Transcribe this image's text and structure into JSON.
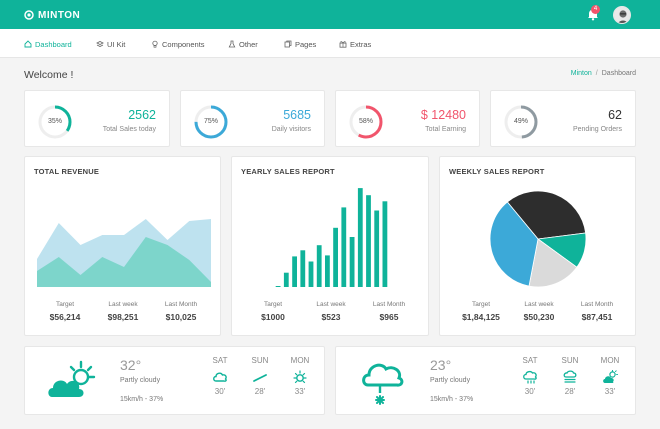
{
  "topbar": {
    "brand": "MINTON",
    "notification_count": "4",
    "color": "#0fb39a"
  },
  "nav": [
    {
      "label": "Dashboard",
      "icon": "home-icon",
      "active": true
    },
    {
      "label": "UI Kit",
      "icon": "layers-icon"
    },
    {
      "label": "Components",
      "icon": "bulb-icon"
    },
    {
      "label": "Other",
      "icon": "flask-icon"
    },
    {
      "label": "Pages",
      "icon": "pages-icon"
    },
    {
      "label": "Extras",
      "icon": "gift-icon"
    }
  ],
  "page": {
    "title": "Welcome !",
    "breadcrumb": [
      "Minton",
      "Dashboard"
    ]
  },
  "stats": [
    {
      "percent": "35%",
      "fraction": 0.35,
      "value": "2562",
      "label": "Total Sales today",
      "color": "#0fb39a"
    },
    {
      "percent": "75%",
      "fraction": 0.75,
      "value": "5685",
      "label": "Daily visitors",
      "color": "#3ca9d8"
    },
    {
      "percent": "58%",
      "fraction": 0.58,
      "value": "$ 12480",
      "label": "Total Earning",
      "color": "#f1556c"
    },
    {
      "percent": "49%",
      "fraction": 0.49,
      "value": "62",
      "label": "Pending Orders",
      "color": "#8f9aa1"
    }
  ],
  "charts": {
    "revenue": {
      "title": "TOTAL REVENUE",
      "kpis": [
        {
          "label": "Target",
          "value": "$56,214"
        },
        {
          "label": "Last week",
          "value": "$98,251"
        },
        {
          "label": "Last Month",
          "value": "$10,025"
        }
      ]
    },
    "yearly": {
      "title": "YEARLY SALES REPORT",
      "kpis": [
        {
          "label": "Target",
          "value": "$1000"
        },
        {
          "label": "Last week",
          "value": "$523"
        },
        {
          "label": "Last Month",
          "value": "$965"
        }
      ]
    },
    "weekly": {
      "title": "WEEKLY SALES REPORT",
      "kpis": [
        {
          "label": "Target",
          "value": "$1,84,125"
        },
        {
          "label": "Last week",
          "value": "$50,230"
        },
        {
          "label": "Last Month",
          "value": "$87,451"
        }
      ]
    }
  },
  "chart_data": [
    {
      "type": "area",
      "title": "TOTAL REVENUE",
      "x": [
        0,
        1,
        2,
        3,
        4,
        5,
        6,
        7,
        8
      ],
      "ylim": [
        0,
        100
      ],
      "series": [
        {
          "values": [
            28,
            64,
            42,
            52,
            52,
            68,
            47,
            66,
            68
          ],
          "color": "#a8d8ea"
        },
        {
          "values": [
            16,
            30,
            12,
            30,
            20,
            50,
            42,
            27,
            5
          ],
          "color": "#72d2c4"
        }
      ]
    },
    {
      "type": "bar",
      "title": "YEARLY SALES REPORT",
      "ylim": [
        0,
        100
      ],
      "values": [
        1,
        14,
        30,
        36,
        25,
        41,
        31,
        58,
        78,
        49,
        97,
        90,
        75,
        84
      ],
      "color": "#0fb39a"
    },
    {
      "type": "pie",
      "title": "WEEKLY SALES REPORT",
      "values": [
        34,
        12,
        18,
        36
      ],
      "colors": [
        "#2d2d2d",
        "#0fb39a",
        "#dadada",
        "#3ca9d8"
      ]
    }
  ],
  "weather": [
    {
      "temp": "32°",
      "desc": "Partly cloudy",
      "wind": "15km/h - 37%",
      "days": [
        {
          "name": "SAT",
          "temp": "30'",
          "icon": "cloud-icon"
        },
        {
          "name": "SUN",
          "temp": "28'",
          "icon": "wind-icon"
        },
        {
          "name": "MON",
          "temp": "33'",
          "icon": "sun-icon"
        }
      ]
    },
    {
      "temp": "23°",
      "desc": "Partly cloudy",
      "wind": "15km/h - 37%",
      "days": [
        {
          "name": "SAT",
          "temp": "30'",
          "icon": "rain-cloud-icon"
        },
        {
          "name": "SUN",
          "temp": "28'",
          "icon": "fog-icon"
        },
        {
          "name": "MON",
          "temp": "33'",
          "icon": "partly-cloudy-icon"
        }
      ]
    }
  ]
}
